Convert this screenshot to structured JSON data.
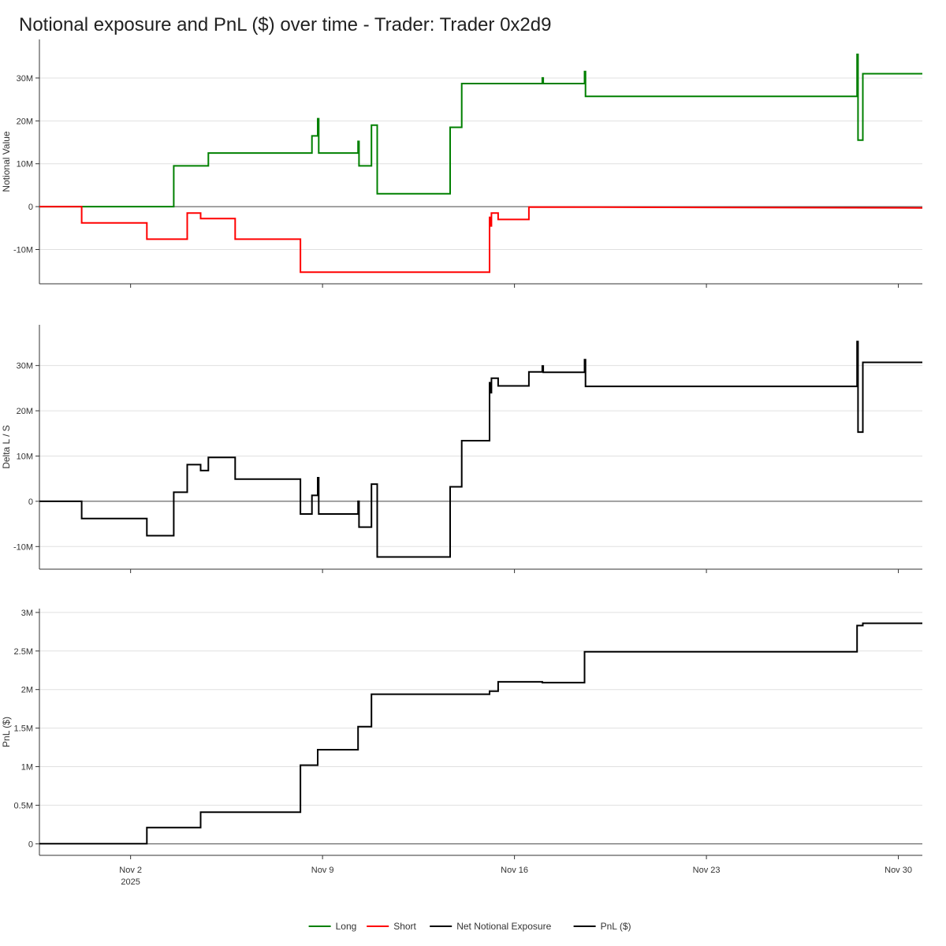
{
  "title": "Notional exposure and PnL ($) over time - Trader: Trader 0x2d9",
  "colors": {
    "long": "#008000",
    "short": "#ff0000",
    "net": "#000000",
    "pnl": "#000000",
    "grid": "#e0e0e0",
    "axis": "#333333",
    "zero": "#444444"
  },
  "chart_data": [
    {
      "type": "line",
      "ylabel": "Notional Value",
      "ylim": [
        -18,
        39
      ],
      "yticks": [
        -10,
        0,
        10,
        20,
        30
      ],
      "ytick_labels": [
        "-10M",
        "0",
        "10M",
        "20M",
        "30M"
      ],
      "x_range": [
        0,
        46
      ],
      "series": [
        {
          "name": "Long",
          "color": "#008000",
          "step_points": [
            [
              0,
              0
            ],
            [
              7.0,
              0
            ],
            [
              7.0,
              9.5
            ],
            [
              8.8,
              9.5
            ],
            [
              8.8,
              12.5
            ],
            [
              14.2,
              12.5
            ],
            [
              14.2,
              16.5
            ],
            [
              14.5,
              16.5
            ],
            [
              14.5,
              20.5
            ],
            [
              14.55,
              20.5
            ],
            [
              14.55,
              12.5
            ],
            [
              16.6,
              12.5
            ],
            [
              16.6,
              15.2
            ],
            [
              16.65,
              15.2
            ],
            [
              16.65,
              9.5
            ],
            [
              17.3,
              9.5
            ],
            [
              17.3,
              19.0
            ],
            [
              17.6,
              19.0
            ],
            [
              17.6,
              3.0
            ],
            [
              21.4,
              3.0
            ],
            [
              21.4,
              18.5
            ],
            [
              22.0,
              18.5
            ],
            [
              22.0,
              28.7
            ],
            [
              26.2,
              28.7
            ],
            [
              26.2,
              30.0
            ],
            [
              26.25,
              30.0
            ],
            [
              26.25,
              28.7
            ],
            [
              28.4,
              28.7
            ],
            [
              28.4,
              31.5
            ],
            [
              28.45,
              31.5
            ],
            [
              28.45,
              25.7
            ],
            [
              42.6,
              25.7
            ],
            [
              42.6,
              35.5
            ],
            [
              42.65,
              35.5
            ],
            [
              42.65,
              15.5
            ],
            [
              42.9,
              15.5
            ],
            [
              42.9,
              31.0
            ],
            [
              46,
              31.0
            ]
          ]
        },
        {
          "name": "Short",
          "color": "#ff0000",
          "step_points": [
            [
              0,
              0
            ],
            [
              2.2,
              0
            ],
            [
              2.2,
              -3.8
            ],
            [
              5.6,
              -3.8
            ],
            [
              5.6,
              -7.6
            ],
            [
              7.7,
              -7.6
            ],
            [
              7.7,
              -1.5
            ],
            [
              8.4,
              -1.5
            ],
            [
              8.4,
              -2.8
            ],
            [
              10.2,
              -2.8
            ],
            [
              10.2,
              -7.6
            ],
            [
              13.6,
              -7.6
            ],
            [
              13.6,
              -15.3
            ],
            [
              23.45,
              -15.3
            ],
            [
              23.45,
              -2.5
            ],
            [
              23.5,
              -2.5
            ],
            [
              23.5,
              -4.5
            ],
            [
              23.55,
              -4.5
            ],
            [
              23.55,
              -1.5
            ],
            [
              23.9,
              -1.5
            ],
            [
              23.9,
              -3.0
            ],
            [
              25.5,
              -3.0
            ],
            [
              25.5,
              -0.1
            ],
            [
              46,
              -0.3
            ]
          ]
        }
      ]
    },
    {
      "type": "line",
      "ylabel": "Delta L / S",
      "ylim": [
        -15,
        39
      ],
      "yticks": [
        -10,
        0,
        10,
        20,
        30
      ],
      "ytick_labels": [
        "-10M",
        "0",
        "10M",
        "20M",
        "30M"
      ],
      "x_range": [
        0,
        46
      ],
      "series": [
        {
          "name": "Net Notional Exposure",
          "color": "#000000",
          "step_points": [
            [
              0,
              0
            ],
            [
              2.2,
              0
            ],
            [
              2.2,
              -3.8
            ],
            [
              5.6,
              -3.8
            ],
            [
              5.6,
              -7.6
            ],
            [
              7.0,
              -7.6
            ],
            [
              7.0,
              2.0
            ],
            [
              7.7,
              2.0
            ],
            [
              7.7,
              8.1
            ],
            [
              8.4,
              8.1
            ],
            [
              8.4,
              6.8
            ],
            [
              8.8,
              6.8
            ],
            [
              8.8,
              9.7
            ],
            [
              10.2,
              9.7
            ],
            [
              10.2,
              4.9
            ],
            [
              13.6,
              4.9
            ],
            [
              13.6,
              -2.8
            ],
            [
              14.2,
              -2.8
            ],
            [
              14.2,
              1.3
            ],
            [
              14.5,
              1.3
            ],
            [
              14.5,
              5.2
            ],
            [
              14.55,
              5.2
            ],
            [
              14.55,
              -2.8
            ],
            [
              16.6,
              -2.8
            ],
            [
              16.6,
              0.0
            ],
            [
              16.65,
              0.0
            ],
            [
              16.65,
              -5.7
            ],
            [
              17.3,
              -5.7
            ],
            [
              17.3,
              3.8
            ],
            [
              17.6,
              3.8
            ],
            [
              17.6,
              -12.3
            ],
            [
              21.4,
              -12.3
            ],
            [
              21.4,
              3.2
            ],
            [
              22.0,
              3.2
            ],
            [
              22.0,
              13.4
            ],
            [
              23.45,
              13.4
            ],
            [
              23.45,
              26.2
            ],
            [
              23.5,
              26.2
            ],
            [
              23.5,
              24.0
            ],
            [
              23.55,
              24.0
            ],
            [
              23.55,
              27.2
            ],
            [
              23.9,
              27.2
            ],
            [
              23.9,
              25.5
            ],
            [
              25.5,
              25.5
            ],
            [
              25.5,
              28.6
            ],
            [
              26.2,
              28.6
            ],
            [
              26.2,
              29.9
            ],
            [
              26.25,
              29.9
            ],
            [
              26.25,
              28.5
            ],
            [
              28.4,
              28.5
            ],
            [
              28.4,
              31.3
            ],
            [
              28.45,
              31.3
            ],
            [
              28.45,
              25.4
            ],
            [
              42.6,
              25.4
            ],
            [
              42.6,
              35.3
            ],
            [
              42.65,
              35.3
            ],
            [
              42.65,
              15.3
            ],
            [
              42.9,
              15.3
            ],
            [
              42.9,
              30.7
            ],
            [
              46,
              30.7
            ]
          ]
        }
      ]
    },
    {
      "type": "line",
      "ylabel": "PnL ($)",
      "ylim": [
        -0.15,
        3.05
      ],
      "yticks": [
        0,
        0.5,
        1,
        1.5,
        2,
        2.5,
        3
      ],
      "ytick_labels": [
        "0",
        "0.5M",
        "1M",
        "1.5M",
        "2M",
        "2.5M",
        "3M"
      ],
      "x_range": [
        0,
        46
      ],
      "series": [
        {
          "name": "PnL ($)",
          "color": "#000000",
          "step_points": [
            [
              0,
              0
            ],
            [
              5.6,
              0
            ],
            [
              5.6,
              0.21
            ],
            [
              8.4,
              0.21
            ],
            [
              8.4,
              0.41
            ],
            [
              13.6,
              0.41
            ],
            [
              13.6,
              1.02
            ],
            [
              14.5,
              1.02
            ],
            [
              14.5,
              1.22
            ],
            [
              16.6,
              1.22
            ],
            [
              16.6,
              1.52
            ],
            [
              17.3,
              1.52
            ],
            [
              17.3,
              1.94
            ],
            [
              23.45,
              1.94
            ],
            [
              23.45,
              1.98
            ],
            [
              23.9,
              1.98
            ],
            [
              23.9,
              2.1
            ],
            [
              26.2,
              2.1
            ],
            [
              26.2,
              2.09
            ],
            [
              28.4,
              2.09
            ],
            [
              28.4,
              2.49
            ],
            [
              42.6,
              2.49
            ],
            [
              42.6,
              2.83
            ],
            [
              42.9,
              2.83
            ],
            [
              42.9,
              2.86
            ],
            [
              46,
              2.86
            ]
          ]
        }
      ]
    }
  ],
  "x_axis": {
    "ticks": [
      {
        "pos": 4.75,
        "label": "Nov 2",
        "sublabel": "2025"
      },
      {
        "pos": 14.75,
        "label": "Nov 9",
        "sublabel": ""
      },
      {
        "pos": 24.75,
        "label": "Nov 16",
        "sublabel": ""
      },
      {
        "pos": 34.75,
        "label": "Nov 23",
        "sublabel": ""
      },
      {
        "pos": 44.75,
        "label": "Nov 30",
        "sublabel": ""
      }
    ]
  },
  "legend": {
    "position": "bottom-center",
    "items": [
      {
        "label": "Long",
        "color": "#008000"
      },
      {
        "label": "Short",
        "color": "#ff0000"
      },
      {
        "label": "Net Notional Exposure",
        "color": "#000000"
      },
      {
        "label": "PnL ($)",
        "color": "#000000"
      }
    ]
  }
}
